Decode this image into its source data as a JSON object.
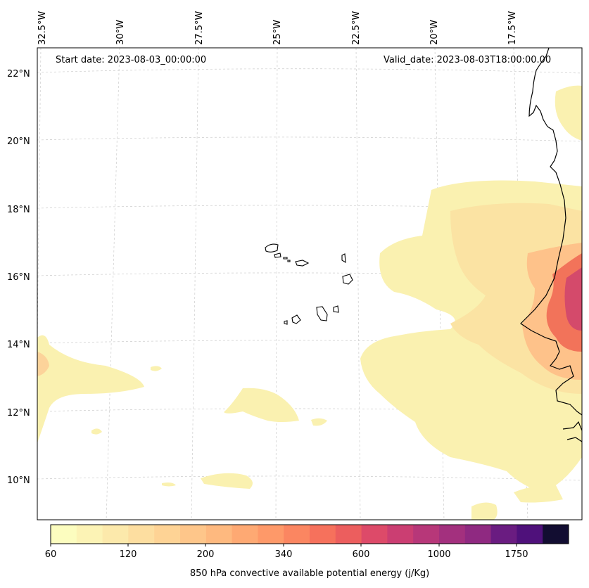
{
  "map": {
    "start_label": "Start date: 2023-08-03_00:00:00",
    "valid_label": "Valid_date: 2023-08-03T18:00:00.00",
    "lon_labels": [
      "32.5°W",
      "30°W",
      "27.5°W",
      "25°W",
      "22.5°W",
      "20°W",
      "17.5°W"
    ],
    "lat_labels": [
      "22°N",
      "20°N",
      "18°N",
      "16°N",
      "14°N",
      "12°N",
      "10°N"
    ]
  },
  "colorbar": {
    "label": "850 hPa convective available potential energy (j/Kg)",
    "tick_labels": [
      "60",
      "120",
      "200",
      "340",
      "600",
      "1000",
      "1750"
    ],
    "colors": [
      "#fcfdbf",
      "#fcf3b5",
      "#fce9ab",
      "#fddea0",
      "#fed395",
      "#fec68a",
      "#feb97f",
      "#fea973",
      "#fe9969",
      "#fb8661",
      "#f6715c",
      "#ec5e5e",
      "#dd4a69",
      "#cb3e72",
      "#b73779",
      "#a3307e",
      "#8f2981",
      "#6a1c81",
      "#4f117b",
      "#120d31"
    ]
  }
}
